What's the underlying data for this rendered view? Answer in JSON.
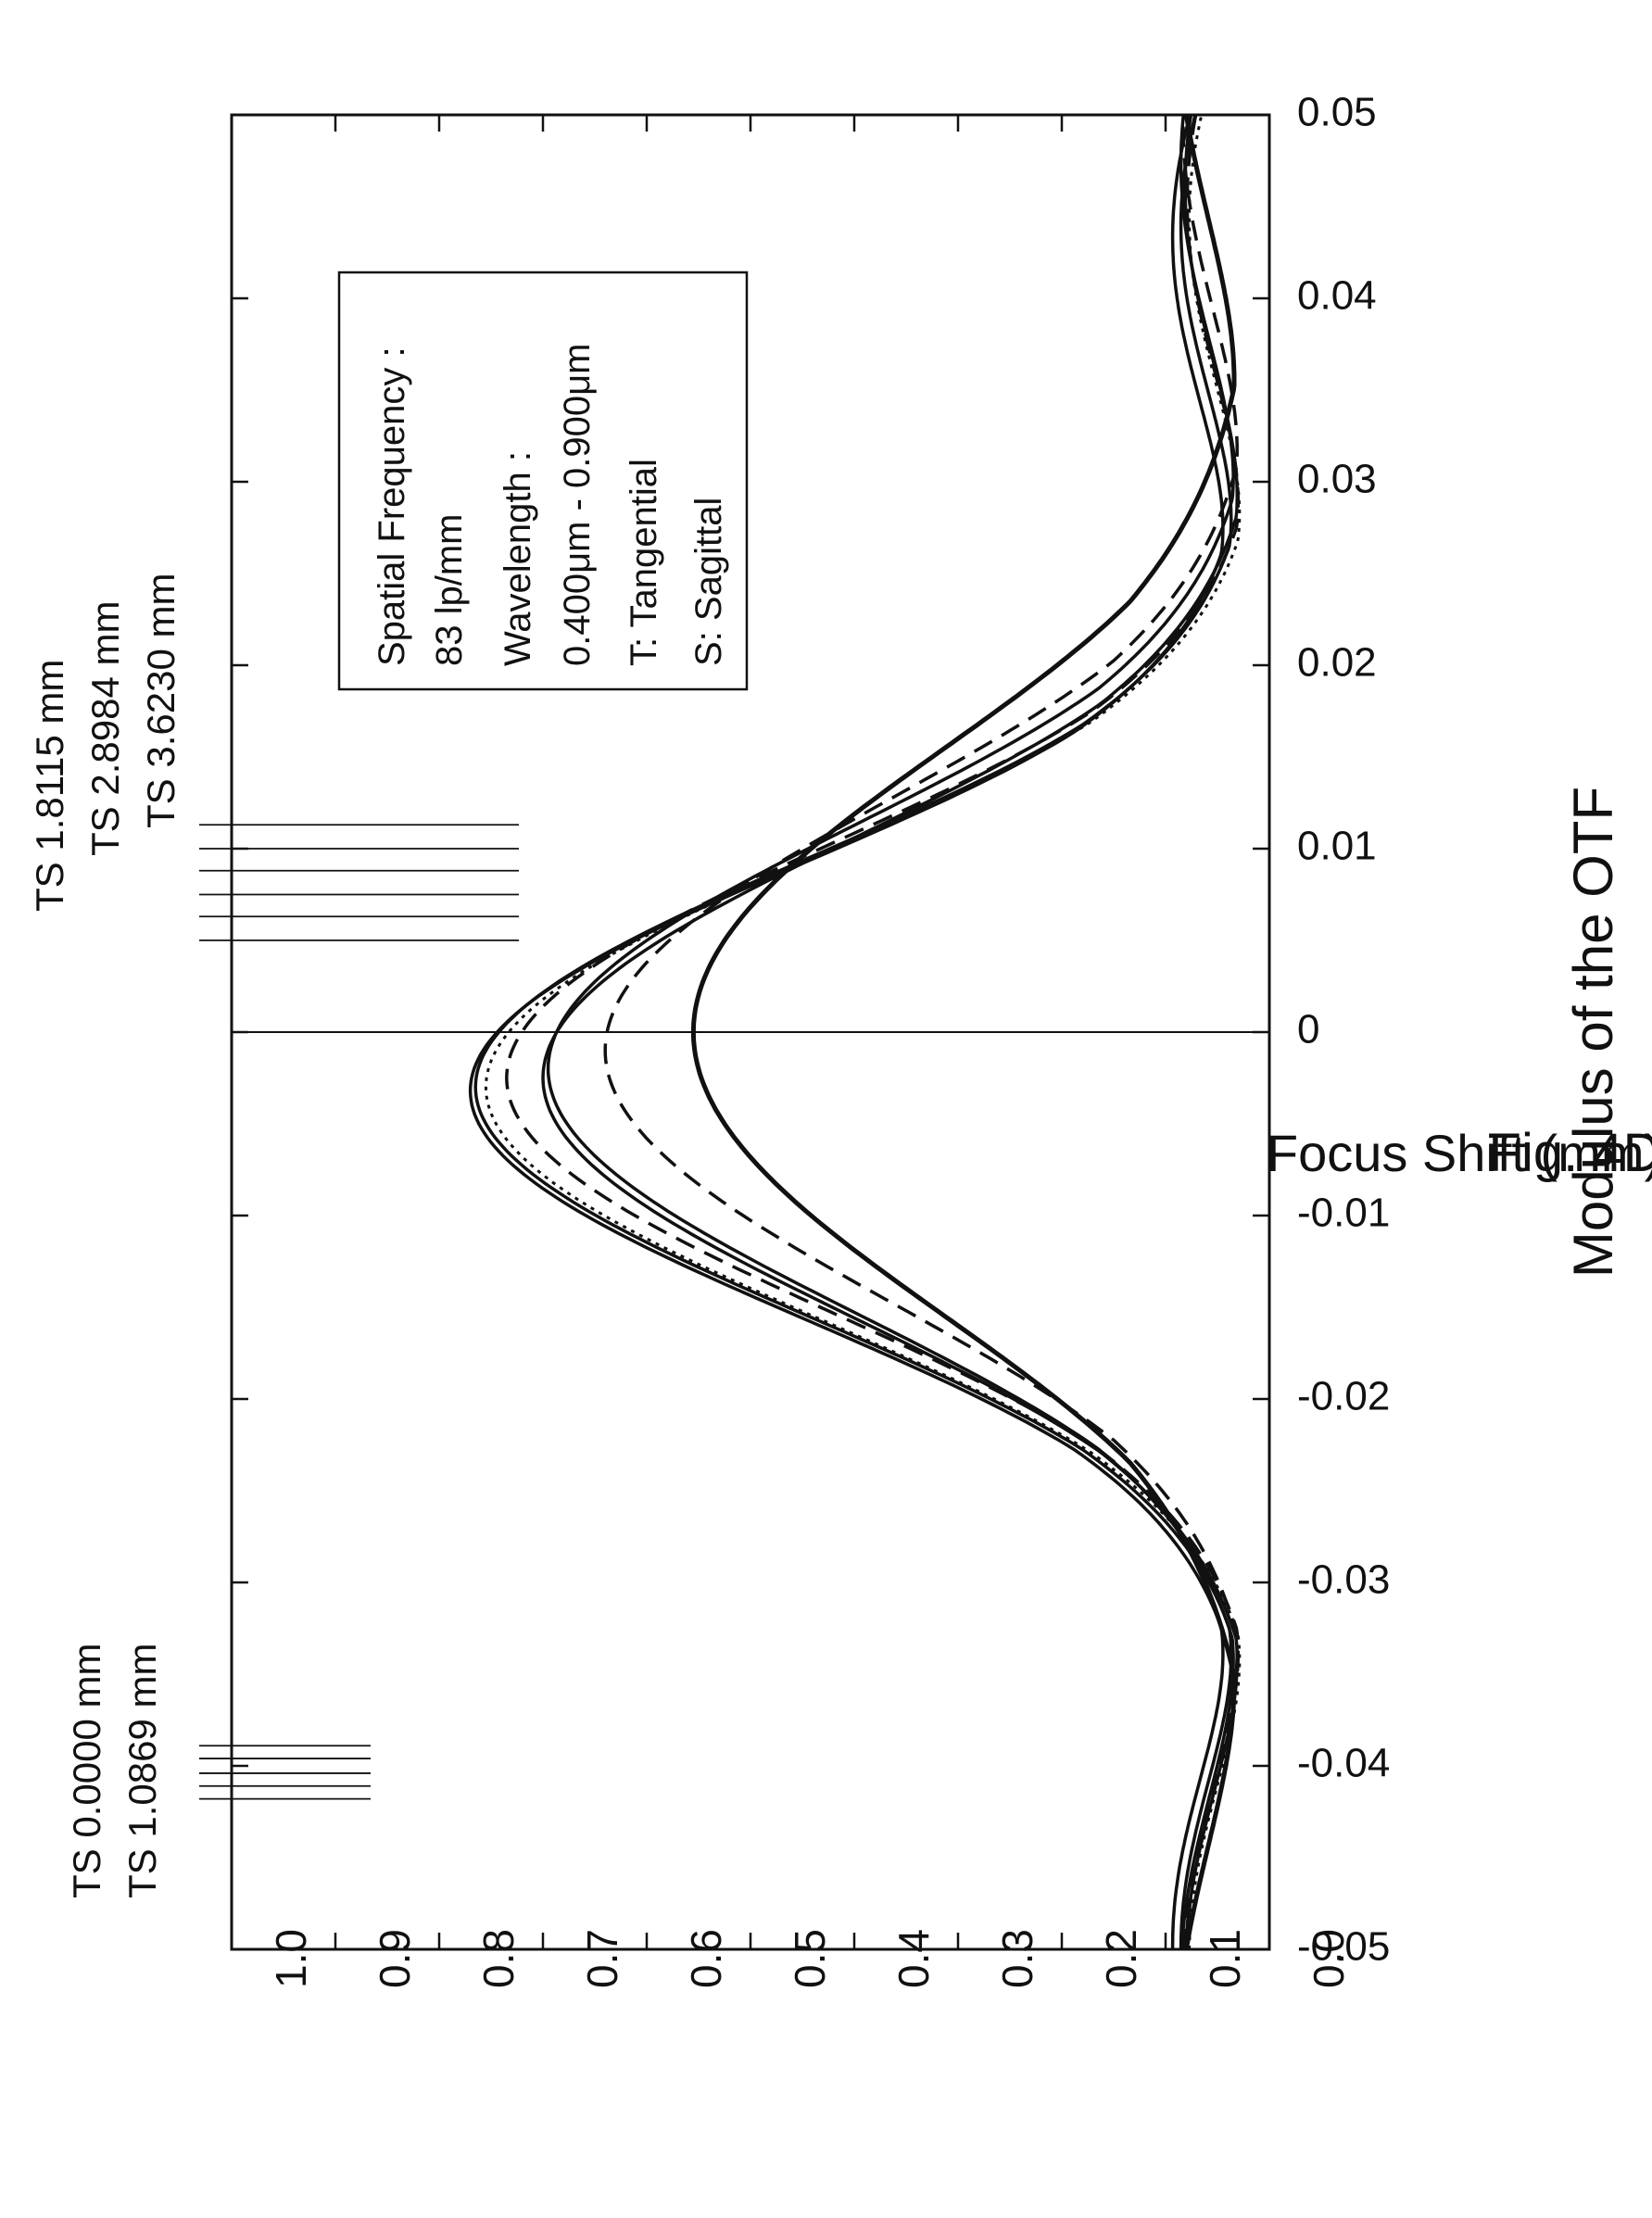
{
  "figure_label": "Fig. 4D",
  "chart_data": {
    "type": "line",
    "xlabel": "Focus Shift (mm)",
    "ylabel": "Modulus of the OTF",
    "xlim": [
      -0.05,
      0.05
    ],
    "ylim": [
      0.0,
      1.0
    ],
    "x_ticks": [
      "-0.05",
      "-0.04",
      "-0.03",
      "-0.02",
      "-0.01",
      "0",
      "0.01",
      "0.02",
      "0.03",
      "0.04",
      "0.05"
    ],
    "y_ticks": [
      "0.0",
      "0.1",
      "0.2",
      "0.3",
      "0.4",
      "0.5",
      "0.6",
      "0.7",
      "0.8",
      "0.9",
      "1.0"
    ],
    "legend": {
      "position": "top-right",
      "lines": [
        "Spatial Frequency :",
        "83 lp/mm",
        "Wavelength :",
        "0.400μm - 0.900μm",
        "T:   Tangential",
        "S:   Sagittal"
      ]
    },
    "field_labels": [
      "TS 0.0000 mm",
      "TS 1.0869 mm",
      "TS 1.8115 mm",
      "TS 2.8984 mm",
      "TS 3.6230 mm"
    ],
    "series": [
      {
        "style": "solid-thick",
        "peak": 0.535,
        "center": 0.0,
        "sigma": 0.0138,
        "base": 0.06
      },
      {
        "style": "dashed",
        "peak": 0.62,
        "center": -0.001,
        "sigma": 0.0125,
        "base": 0.045
      },
      {
        "style": "solid",
        "peak": 0.675,
        "center": -0.002,
        "sigma": 0.0122,
        "base": 0.05
      },
      {
        "style": "solid",
        "peak": 0.68,
        "center": -0.0025,
        "sigma": 0.012,
        "base": 0.04
      },
      {
        "style": "dashed",
        "peak": 0.715,
        "center": -0.0025,
        "sigma": 0.0118,
        "base": 0.035
      },
      {
        "style": "dotted",
        "peak": 0.735,
        "center": -0.003,
        "sigma": 0.0117,
        "base": 0.03
      },
      {
        "style": "solid",
        "peak": 0.745,
        "center": -0.003,
        "sigma": 0.0116,
        "base": 0.05
      },
      {
        "style": "solid",
        "peak": 0.75,
        "center": -0.0032,
        "sigma": 0.0115,
        "base": 0.07
      }
    ]
  }
}
